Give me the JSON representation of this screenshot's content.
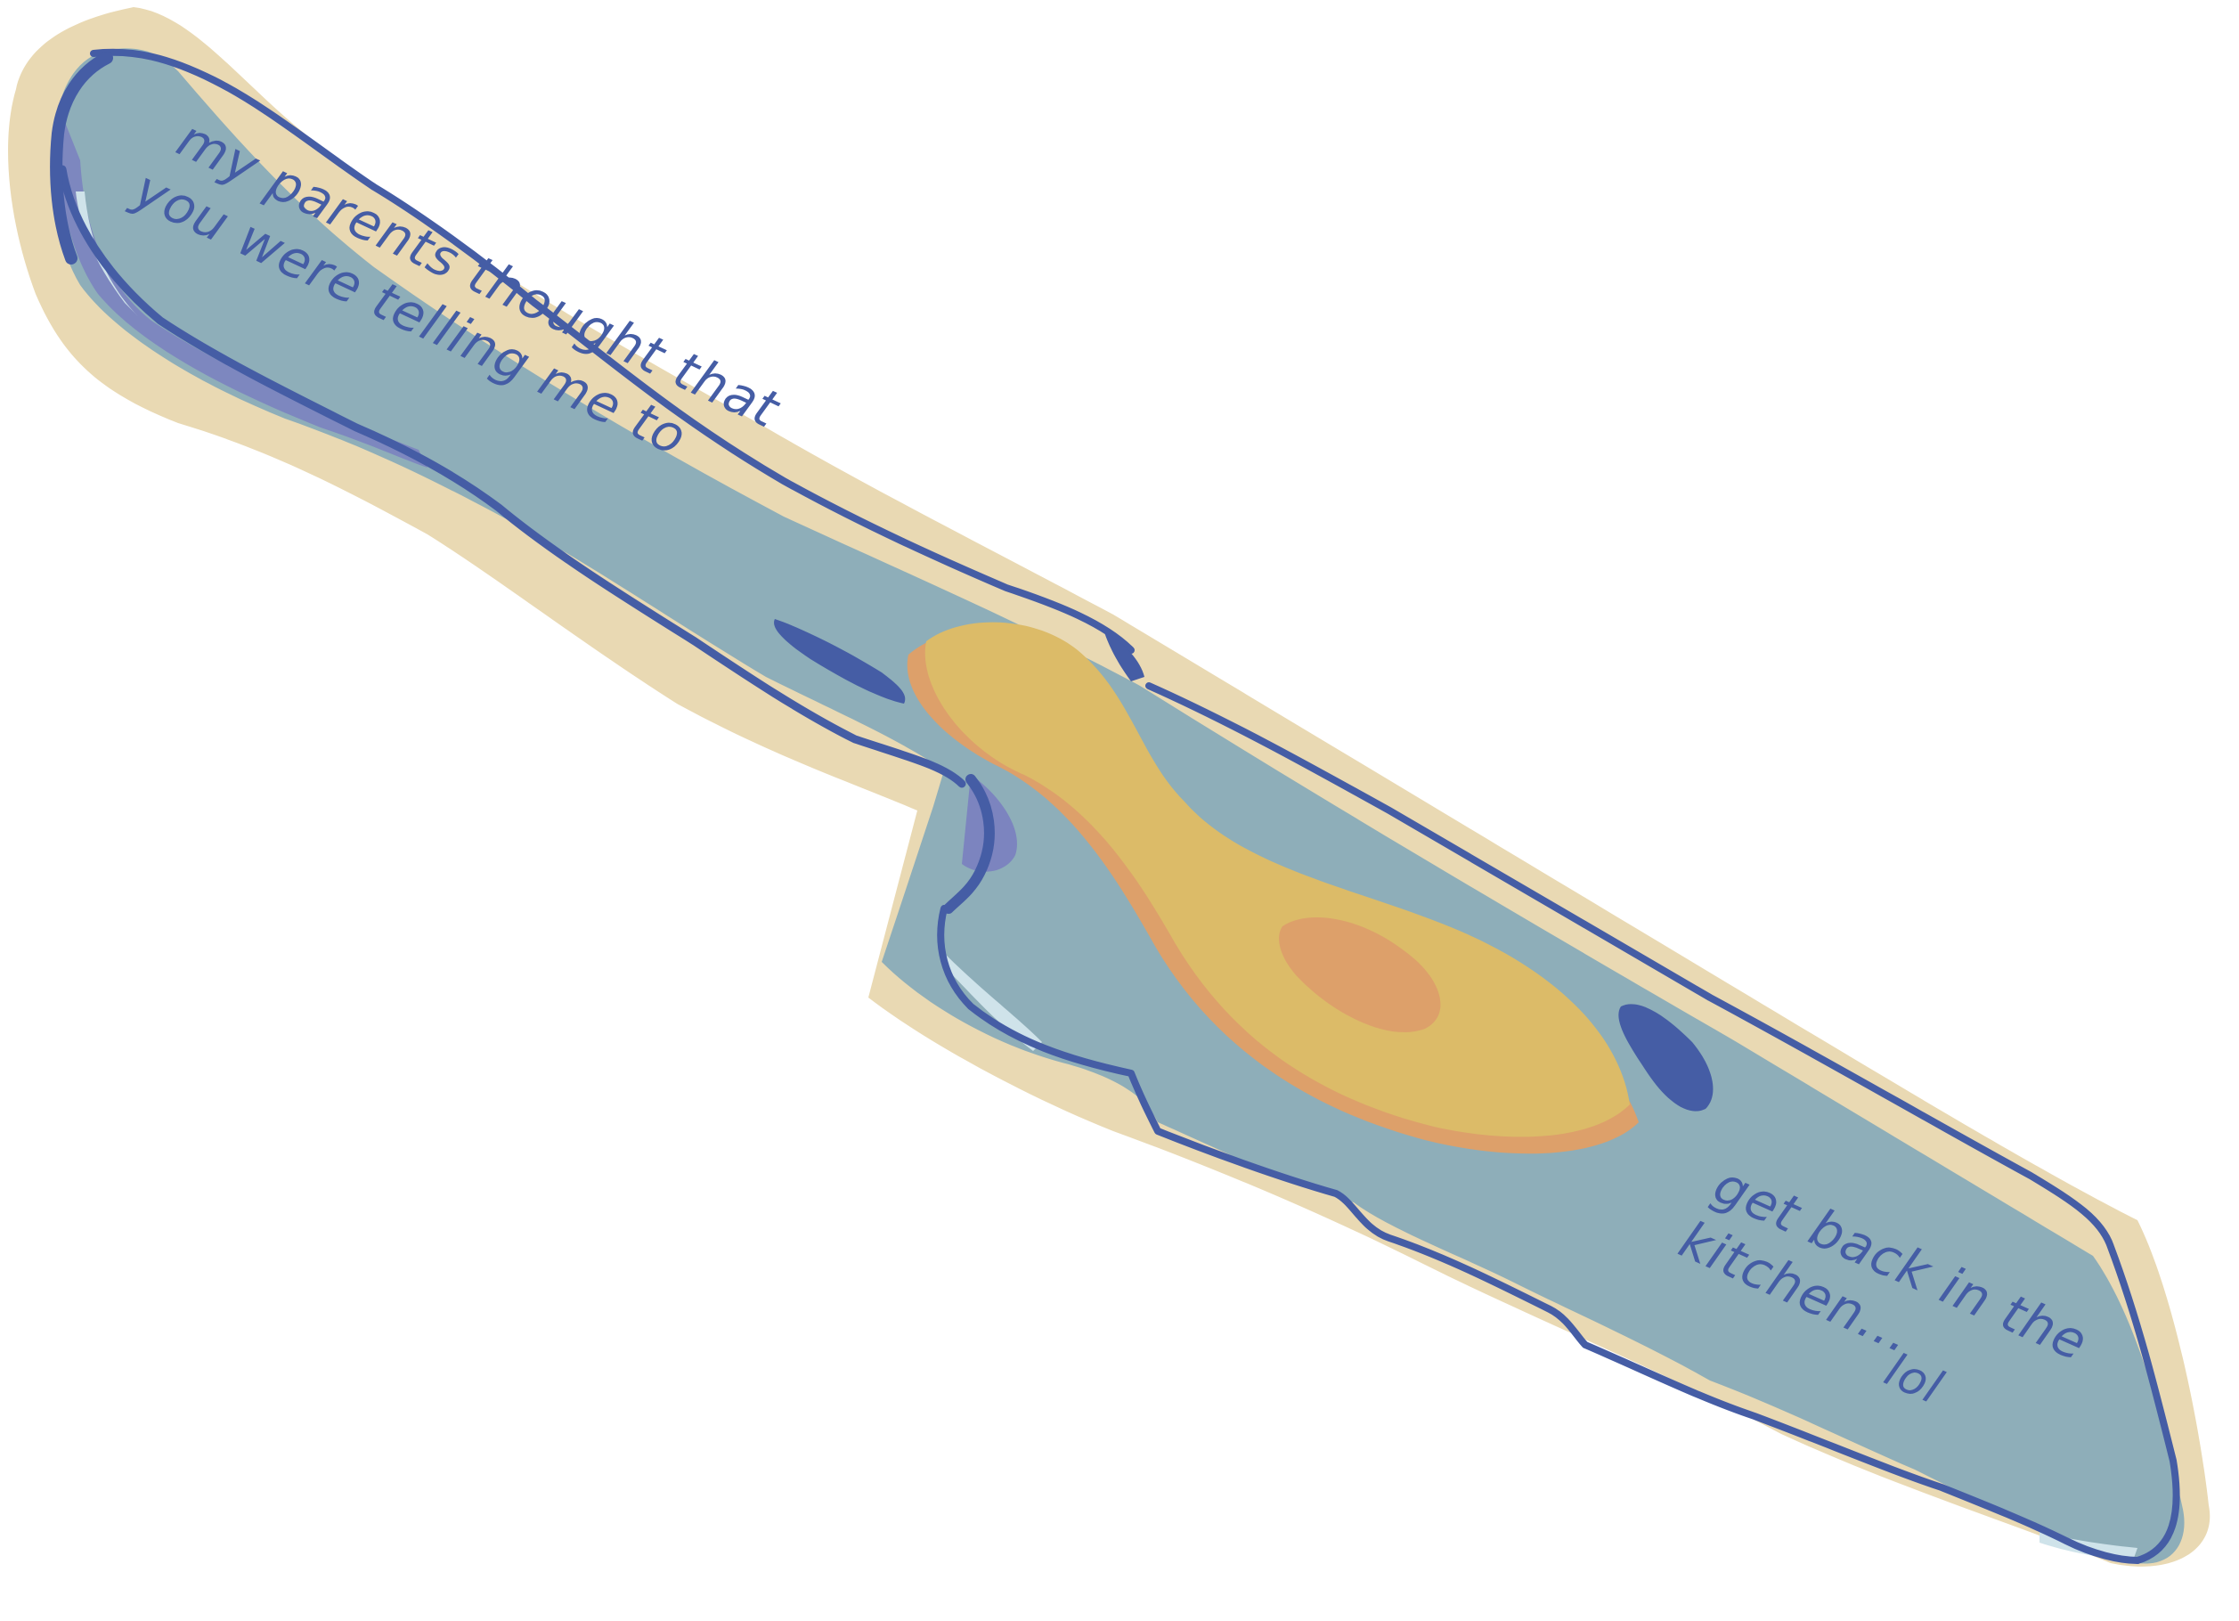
{
  "note": {
    "line1": "my parents thought that",
    "line2": "you were telling me to",
    "line3": "get back in the",
    "line4": "kitchen...",
    "line5": "lol"
  },
  "colors": {
    "background": "#ffffff",
    "outline_halo": "#e9d9b3",
    "blade_fill": "#8eaeb9",
    "ink_blue": "#455da5",
    "periwinkle": "#7a80c0",
    "highlight": "#cfe3ea",
    "mustard": "#dcbb68",
    "orange": "#dda06a"
  },
  "icons": {
    "sticker": "kitchen-knife-sticker"
  }
}
